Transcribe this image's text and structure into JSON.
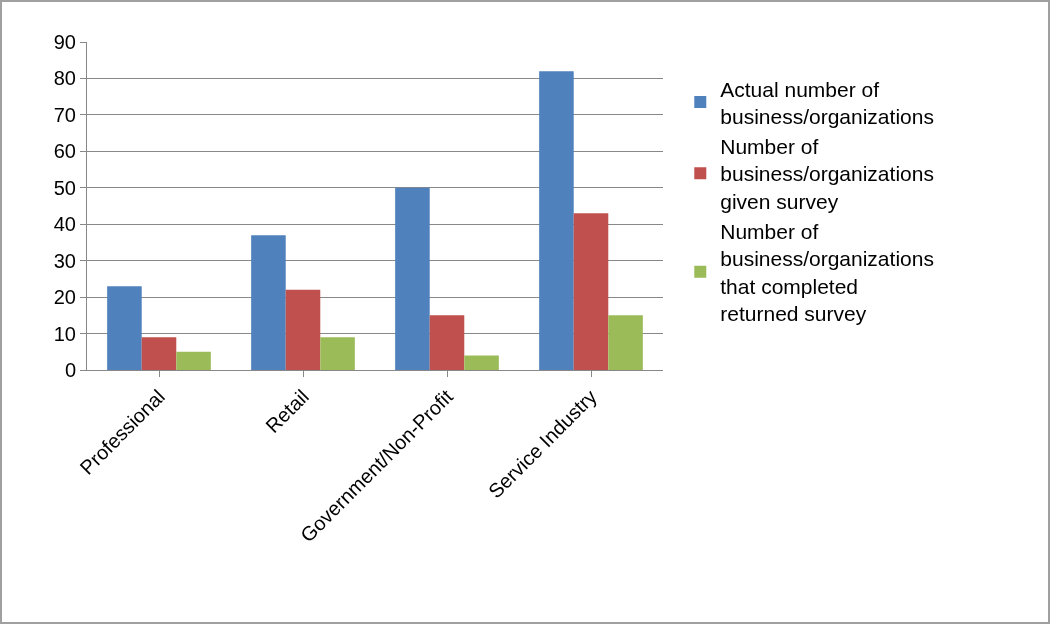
{
  "chart_data": {
    "type": "bar",
    "categories": [
      "Professional",
      "Retail",
      "Government/Non-Profit",
      "Service Industry"
    ],
    "series": [
      {
        "name": "Actual number of business/organizations",
        "color": "#4f81bd",
        "values": [
          23,
          37,
          50,
          82
        ]
      },
      {
        "name": "Number of business/organizations given survey",
        "color": "#c0504d",
        "values": [
          9,
          22,
          15,
          43
        ]
      },
      {
        "name": "Number of business/organizations that completed returned survey",
        "color": "#9bbb59",
        "values": [
          5,
          9,
          4,
          15
        ]
      }
    ],
    "ylim": [
      0,
      90
    ],
    "yticks": [
      0,
      10,
      20,
      30,
      40,
      50,
      60,
      70,
      80,
      90
    ],
    "grid": "y",
    "legend": "right"
  }
}
